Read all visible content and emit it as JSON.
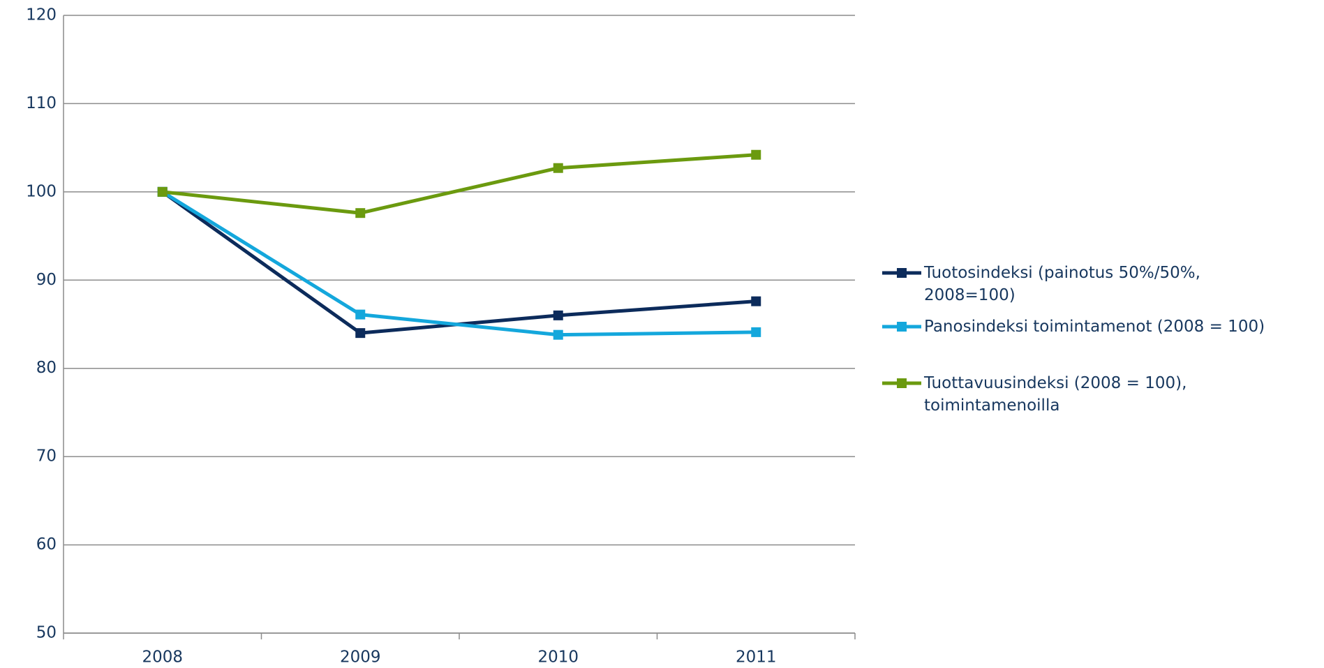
{
  "chart_data": {
    "type": "line",
    "categories": [
      "2008",
      "2009",
      "2010",
      "2011"
    ],
    "series": [
      {
        "name": "Tuotosindeksi (painotus 50%/50%, 2008=100)",
        "color": "#0c2b5b",
        "values": [
          100,
          84.0,
          86.0,
          87.6
        ]
      },
      {
        "name": "Panosindeksi toimintamenot (2008 = 100)",
        "color": "#14a7dc",
        "values": [
          100,
          86.1,
          83.8,
          84.1
        ]
      },
      {
        "name": "Tuottavuusindeksi (2008 = 100), toimintamenoilla",
        "color": "#6b9a0f",
        "values": [
          100,
          97.6,
          102.7,
          104.2
        ]
      }
    ],
    "ylim": [
      50,
      120
    ],
    "yticks": [
      50,
      60,
      70,
      80,
      90,
      100,
      110,
      120
    ],
    "grid": true,
    "legend": "right"
  }
}
